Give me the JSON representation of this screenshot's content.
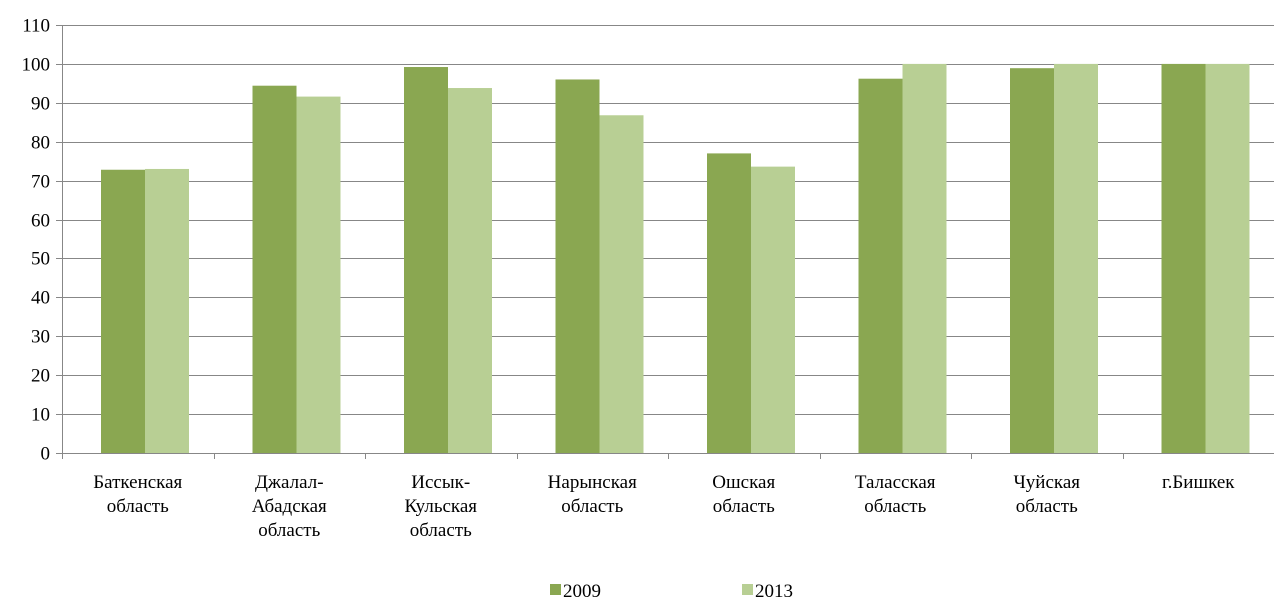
{
  "chart_data": {
    "type": "bar",
    "title": "",
    "xlabel": "",
    "ylabel": "",
    "ylim": [
      0,
      110
    ],
    "yticks": [
      0,
      10,
      20,
      30,
      40,
      50,
      60,
      70,
      80,
      90,
      100,
      110
    ],
    "grid": true,
    "legend_position": "bottom",
    "categories": [
      [
        "Баткенская",
        "область"
      ],
      [
        "Джалал-",
        "Абадская",
        "область"
      ],
      [
        "Иссык-",
        "Кульская",
        "область"
      ],
      [
        "Нарынская",
        "область"
      ],
      [
        "Ошская",
        "область"
      ],
      [
        "Таласская",
        "область"
      ],
      [
        "Чуйская",
        "область"
      ],
      [
        "г.Бишкек"
      ]
    ],
    "series": [
      {
        "name": "2009",
        "color": "#8aa751",
        "values": [
          72.8,
          94.4,
          99.2,
          96.0,
          77.0,
          96.2,
          98.9,
          100.0
        ]
      },
      {
        "name": "2013",
        "color": "#b8cf94",
        "values": [
          73.0,
          91.6,
          93.8,
          86.8,
          73.6,
          100.0,
          100.0,
          100.0
        ]
      }
    ],
    "colors": {
      "grid": "#878787",
      "axis": "#878787"
    }
  }
}
